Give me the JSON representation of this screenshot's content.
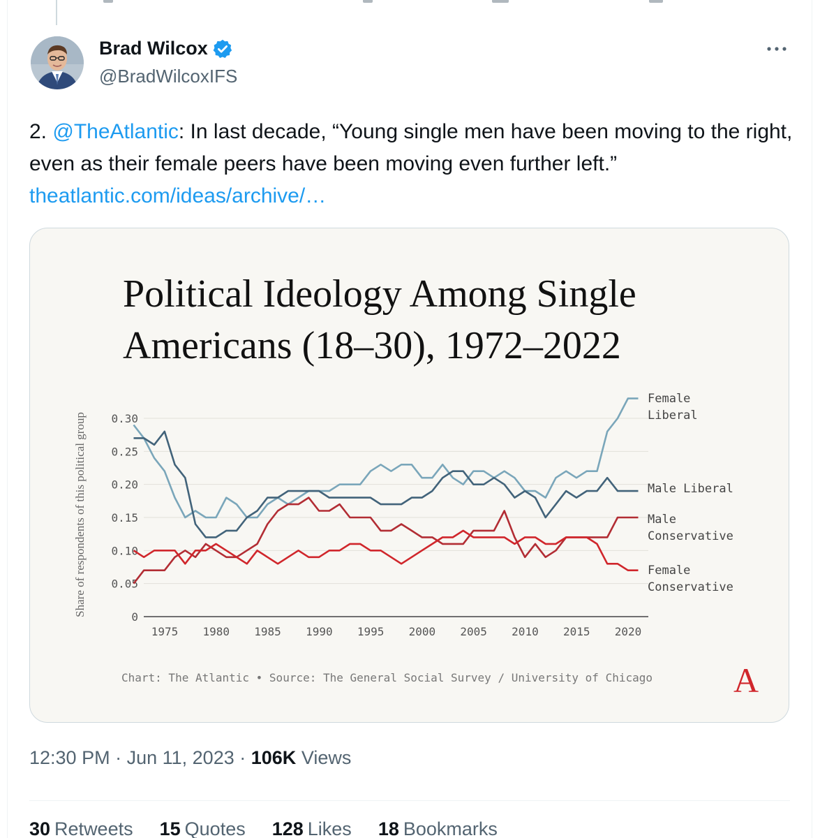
{
  "tweet": {
    "author": {
      "display_name": "Brad Wilcox",
      "handle": "@BradWilcoxIFS",
      "verified_color": "#1d9bf0"
    },
    "text": {
      "prefix": "2. ",
      "mention": "@TheAtlantic",
      "body": ": In last decade, “Young single men have been moving to the right, even as their female peers have been moving even further left.”",
      "link": "theatlantic.com/ideas/archive/…"
    },
    "meta": {
      "time": "12:30 PM",
      "date": "Jun 11, 2023",
      "views_count": "106K",
      "views_label": "Views"
    },
    "stats": [
      {
        "count": "30",
        "label": "Retweets"
      },
      {
        "count": "15",
        "label": "Quotes"
      },
      {
        "count": "128",
        "label": "Likes"
      },
      {
        "count": "18",
        "label": "Bookmarks"
      }
    ],
    "icons": {
      "verified": "verified-badge-icon",
      "more": "more-options-icon"
    }
  },
  "chart_data": {
    "type": "line",
    "title_line1": "Political Ideology Among Single",
    "title_line2": "Americans (18–30), 1972–2022",
    "ylabel": "Share of respondents of this political group",
    "xlabel": "",
    "xlim": [
      1972,
      2022
    ],
    "ylim": [
      0,
      0.33
    ],
    "x_ticks": [
      1975,
      1980,
      1985,
      1990,
      1995,
      2000,
      2005,
      2010,
      2015,
      2020
    ],
    "y_ticks": [
      {
        "value": 0,
        "label": "0"
      },
      {
        "value": 0.05,
        "label": "0.05"
      },
      {
        "value": 0.1,
        "label": "0.10"
      },
      {
        "value": 0.15,
        "label": "0.15"
      },
      {
        "value": 0.2,
        "label": "0.20"
      },
      {
        "value": 0.25,
        "label": "0.25"
      },
      {
        "value": 0.3,
        "label": "0.30"
      }
    ],
    "grid": true,
    "legend": "direct labels at right end of lines",
    "x": [
      1973,
      1974,
      1975,
      1976,
      1977,
      1978,
      1979,
      1980,
      1981,
      1982,
      1983,
      1984,
      1985,
      1986,
      1987,
      1988,
      1989,
      1990,
      1991,
      1992,
      1993,
      1994,
      1995,
      1996,
      1997,
      1998,
      1999,
      2000,
      2001,
      2002,
      2003,
      2004,
      2005,
      2006,
      2007,
      2008,
      2009,
      2010,
      2011,
      2012,
      2013,
      2014,
      2015,
      2016,
      2017,
      2018,
      2019,
      2020,
      2021,
      2022
    ],
    "series": [
      {
        "name": "Female Liberal",
        "label_lines": [
          "Female",
          "Liberal"
        ],
        "color": "#7aa6ba",
        "values": [
          0.29,
          0.27,
          0.24,
          0.22,
          0.18,
          0.15,
          0.16,
          0.15,
          0.15,
          0.18,
          0.17,
          0.15,
          0.15,
          0.17,
          0.18,
          0.17,
          0.18,
          0.19,
          0.19,
          0.19,
          0.2,
          0.2,
          0.2,
          0.22,
          0.23,
          0.22,
          0.23,
          0.23,
          0.21,
          0.21,
          0.23,
          0.21,
          0.2,
          0.22,
          0.22,
          0.21,
          0.22,
          0.21,
          0.19,
          0.19,
          0.18,
          0.21,
          0.22,
          0.21,
          0.22,
          0.22,
          0.28,
          0.3,
          0.33,
          0.33
        ]
      },
      {
        "name": "Male Liberal",
        "label_lines": [
          "Male Liberal"
        ],
        "color": "#42637a",
        "values": [
          0.27,
          0.27,
          0.26,
          0.28,
          0.23,
          0.21,
          0.14,
          0.12,
          0.12,
          0.13,
          0.13,
          0.15,
          0.16,
          0.18,
          0.18,
          0.19,
          0.19,
          0.19,
          0.19,
          0.18,
          0.18,
          0.18,
          0.18,
          0.18,
          0.17,
          0.17,
          0.17,
          0.18,
          0.18,
          0.19,
          0.21,
          0.22,
          0.22,
          0.2,
          0.2,
          0.21,
          0.2,
          0.18,
          0.19,
          0.18,
          0.15,
          0.17,
          0.19,
          0.18,
          0.19,
          0.19,
          0.21,
          0.19,
          0.19,
          0.19
        ]
      },
      {
        "name": "Male Conservative",
        "label_lines": [
          "Male",
          "Conservative"
        ],
        "color": "#b22d34",
        "values": [
          0.05,
          0.07,
          0.07,
          0.07,
          0.09,
          0.1,
          0.09,
          0.11,
          0.1,
          0.09,
          0.09,
          0.1,
          0.11,
          0.14,
          0.16,
          0.17,
          0.17,
          0.18,
          0.16,
          0.16,
          0.17,
          0.15,
          0.15,
          0.15,
          0.13,
          0.13,
          0.14,
          0.13,
          0.12,
          0.12,
          0.11,
          0.11,
          0.11,
          0.13,
          0.13,
          0.13,
          0.16,
          0.12,
          0.09,
          0.11,
          0.09,
          0.1,
          0.12,
          0.12,
          0.12,
          0.12,
          0.12,
          0.15,
          0.15,
          0.15
        ]
      },
      {
        "name": "Female Conservative",
        "label_lines": [
          "Female",
          "Conservative"
        ],
        "color": "#d0262b",
        "values": [
          0.1,
          0.09,
          0.1,
          0.1,
          0.1,
          0.08,
          0.1,
          0.1,
          0.11,
          0.1,
          0.09,
          0.08,
          0.1,
          0.09,
          0.08,
          0.09,
          0.1,
          0.09,
          0.09,
          0.1,
          0.1,
          0.11,
          0.11,
          0.1,
          0.1,
          0.09,
          0.08,
          0.09,
          0.1,
          0.11,
          0.12,
          0.12,
          0.13,
          0.12,
          0.12,
          0.12,
          0.12,
          0.11,
          0.12,
          0.12,
          0.11,
          0.11,
          0.12,
          0.12,
          0.12,
          0.11,
          0.08,
          0.08,
          0.07,
          0.07
        ]
      }
    ],
    "source_note": "Chart: The Atlantic • Source: The General Social Survey / University of Chicago",
    "logo": "A",
    "logo_color": "#d0262b"
  }
}
